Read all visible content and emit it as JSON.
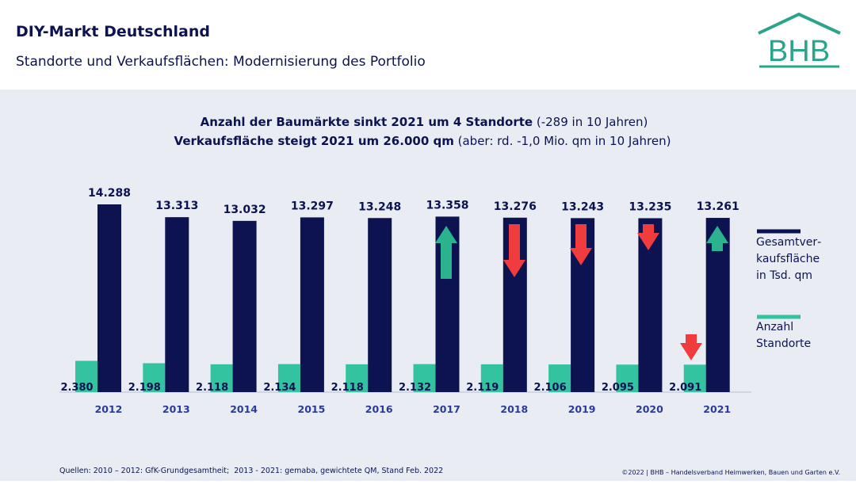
{
  "header": {
    "title": "DIY-Markt Deutschland",
    "subtitle": "Standorte und Verkaufsflächen: Modernisierung des Portfolio",
    "logo": "BHB"
  },
  "chart_data": {
    "type": "bar",
    "headline": [
      {
        "bold": "Anzahl der Baumärkte sinkt 2021 um 4 Standorte",
        "normal": " (-289 in 10 Jahren)"
      },
      {
        "bold": "Verkaufsfläche steigt 2021 um 26.000 qm",
        "normal": " (aber: rd. -1,0 Mio. qm in 10 Jahren)"
      }
    ],
    "categories": [
      "2012",
      "2013",
      "2014",
      "2015",
      "2016",
      "2017",
      "2018",
      "2019",
      "2020",
      "2021"
    ],
    "series": [
      {
        "name": "Anzahl Standorte",
        "color": "#33c3a0",
        "values": [
          2380,
          2198,
          2118,
          2134,
          2118,
          2132,
          2119,
          2106,
          2095,
          2091
        ],
        "value_labels": [
          "2.380",
          "2.198",
          "2.118",
          "2.134",
          "2.118",
          "2.132",
          "2.119",
          "2.106",
          "2.095",
          "2.091"
        ]
      },
      {
        "name": "Gesamtver­kaufsfläche in Tsd. qm",
        "color": "#0c1350",
        "values": [
          14288,
          13313,
          13032,
          13297,
          13248,
          13358,
          13276,
          13243,
          13235,
          13261
        ],
        "value_labels": [
          "14.288",
          "13.313",
          "13.032",
          "13.297",
          "13.248",
          "13.358",
          "13.276",
          "13.243",
          "13.235",
          "13.261"
        ]
      }
    ]
  },
  "footer": {
    "source": "Quellen: 2010 – 2012: GfK-Grundgesamtheit;  2013 - 2021: gemaba, gewichtete QM, Stand Feb. 2022",
    "copyright": "©2022 | BHB – Handelsverband Heimwerken, Bauen und Garten e.V."
  }
}
